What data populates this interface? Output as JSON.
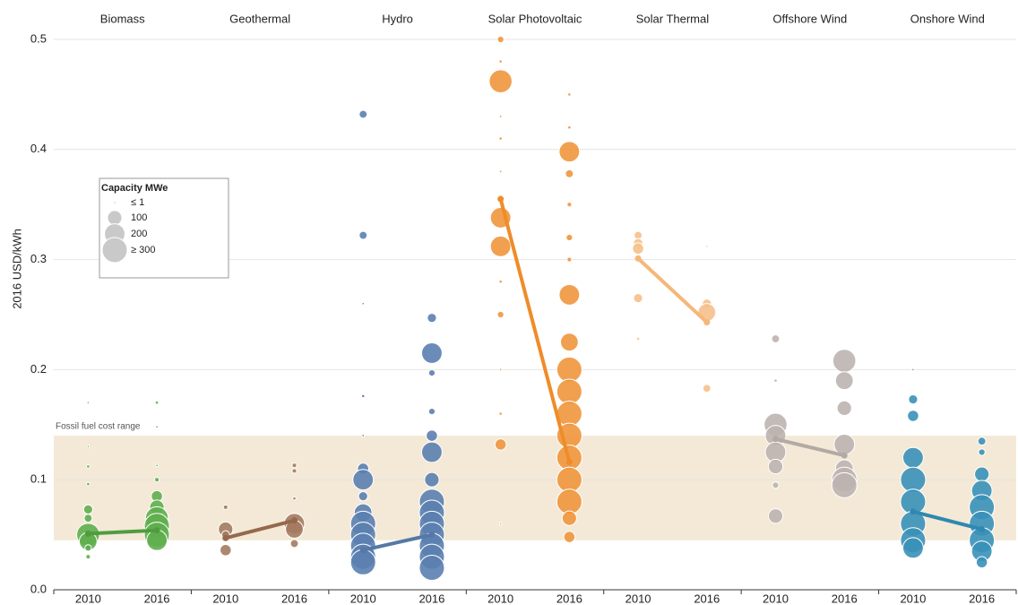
{
  "chart_data": {
    "type": "bubble",
    "y_label": "2016 USD/kWh",
    "ylim": [
      0,
      0.5
    ],
    "yticks": [
      {
        "value": 0,
        "label": "0.0"
      },
      0.1,
      0.2,
      0.3,
      0.4,
      0.5
    ],
    "grid": true,
    "years": [
      "2010",
      "2016"
    ],
    "band": {
      "label": "Fossil fuel cost range",
      "range": [
        0.045,
        0.14
      ],
      "color": "#f3e9d6"
    },
    "legend": {
      "title": "Capacity MWe",
      "labels": [
        "≤ 1",
        "100",
        "200",
        "≥ 300"
      ],
      "sizes": [
        1,
        100,
        200,
        300
      ]
    },
    "max_size": 300,
    "categories": [
      "Biomass",
      "Geothermal",
      "Hydro",
      "Solar Photovoltaic",
      "Solar Thermal",
      "Offshore Wind",
      "Onshore Wind"
    ],
    "series": [
      {
        "name": "Biomass",
        "color": "#5fae4e",
        "line_color": "#4f9c3f",
        "values": [
          0.051,
          0.054
        ],
        "bubbles": [
          {
            "values": [
              0.17,
              0.13,
              0.112,
              0.096,
              0.073,
              0.065,
              0.05,
              0.044,
              0.038,
              0.03
            ],
            "sizes": [
              1,
              1,
              5,
              5,
              40,
              30,
              250,
              150,
              20,
              10
            ]
          },
          {
            "values": [
              0.17,
              0.148,
              0.113,
              0.1,
              0.085,
              0.075,
              0.065,
              0.058,
              0.05,
              0.045
            ],
            "sizes": [
              5,
              3,
              3,
              10,
              60,
              100,
              250,
              300,
              300,
              200
            ]
          }
        ]
      },
      {
        "name": "Geothermal",
        "color": "#a47b60",
        "line_color": "#94694d",
        "values": [
          0.047,
          0.063
        ],
        "bubbles": [
          {
            "values": [
              0.075,
              0.055,
              0.05,
              0.036
            ],
            "sizes": [
              10,
              100,
              30,
              60
            ]
          },
          {
            "values": [
              0.113,
              0.108,
              0.083,
              0.06,
              0.055,
              0.042
            ],
            "sizes": [
              10,
              10,
              5,
              200,
              150,
              30
            ]
          }
        ]
      },
      {
        "name": "Hydro",
        "color": "#5b80b0",
        "line_color": "#5578a6",
        "values": [
          0.036,
          0.05
        ],
        "bubbles": [
          {
            "values": [
              0.432,
              0.322,
              0.26,
              0.176,
              0.14,
              0.11,
              0.1,
              0.085,
              0.07,
              0.06,
              0.05,
              0.04,
              0.03,
              0.025
            ],
            "sizes": [
              30,
              30,
              1,
              5,
              3,
              60,
              200,
              40,
              150,
              300,
              300,
              300,
              300,
              300
            ]
          },
          {
            "values": [
              0.247,
              0.215,
              0.197,
              0.162,
              0.14,
              0.125,
              0.1,
              0.08,
              0.07,
              0.06,
              0.05,
              0.04,
              0.03,
              0.02
            ],
            "sizes": [
              40,
              200,
              20,
              20,
              60,
              200,
              100,
              300,
              300,
              300,
              300,
              300,
              300,
              300
            ]
          }
        ]
      },
      {
        "name": "Solar Photovoltaic",
        "color": "#f0963c",
        "line_color": "#ef8c2a",
        "values": [
          0.355,
          0.116
        ],
        "bubbles": [
          {
            "values": [
              0.5,
              0.48,
              0.462,
              0.43,
              0.41,
              0.38,
              0.338,
              0.312,
              0.28,
              0.25,
              0.2,
              0.16,
              0.132,
              0.06
            ],
            "sizes": [
              20,
              5,
              250,
              3,
              5,
              3,
              200,
              200,
              5,
              20,
              3,
              5,
              60,
              1
            ]
          },
          {
            "values": [
              0.45,
              0.42,
              0.398,
              0.378,
              0.35,
              0.32,
              0.3,
              0.268,
              0.225,
              0.2,
              0.18,
              0.16,
              0.14,
              0.12,
              0.1,
              0.08,
              0.065,
              0.048
            ],
            "sizes": [
              5,
              5,
              200,
              30,
              10,
              20,
              10,
              200,
              150,
              300,
              300,
              300,
              300,
              300,
              300,
              300,
              100,
              60
            ]
          }
        ]
      },
      {
        "name": "Solar Thermal",
        "color": "#f6c08c",
        "line_color": "#f5b77a",
        "values": [
          0.301,
          0.243
        ],
        "bubbles": [
          {
            "values": [
              0.322,
              0.315,
              0.31,
              0.265,
              0.228
            ],
            "sizes": [
              30,
              40,
              60,
              40,
              5
            ]
          },
          {
            "values": [
              0.312,
              0.26,
              0.252,
              0.183
            ],
            "sizes": [
              1,
              40,
              150,
              30
            ]
          }
        ]
      },
      {
        "name": "Offshore Wind",
        "color": "#bdb4b0",
        "line_color": "#b3aaa6",
        "values": [
          0.137,
          0.122
        ],
        "bubbles": [
          {
            "values": [
              0.228,
              0.19,
              0.15,
              0.14,
              0.125,
              0.112,
              0.095,
              0.067
            ],
            "sizes": [
              30,
              5,
              250,
              200,
              200,
              100,
              20,
              100
            ]
          },
          {
            "values": [
              0.208,
              0.19,
              0.165,
              0.132,
              0.11,
              0.1,
              0.095
            ],
            "sizes": [
              250,
              150,
              100,
              200,
              150,
              300,
              300
            ]
          }
        ]
      },
      {
        "name": "Onshore Wind",
        "color": "#3a91b8",
        "line_color": "#2f88b0",
        "values": [
          0.071,
          0.055
        ],
        "bubbles": [
          {
            "values": [
              0.2,
              0.173,
              0.158,
              0.12,
              0.1,
              0.08,
              0.06,
              0.045,
              0.038
            ],
            "sizes": [
              1,
              40,
              60,
              200,
              300,
              300,
              300,
              300,
              200
            ]
          },
          {
            "values": [
              0.135,
              0.125,
              0.105,
              0.09,
              0.075,
              0.06,
              0.045,
              0.035,
              0.025
            ],
            "sizes": [
              30,
              20,
              100,
              200,
              300,
              300,
              300,
              200,
              60
            ]
          }
        ]
      }
    ]
  }
}
